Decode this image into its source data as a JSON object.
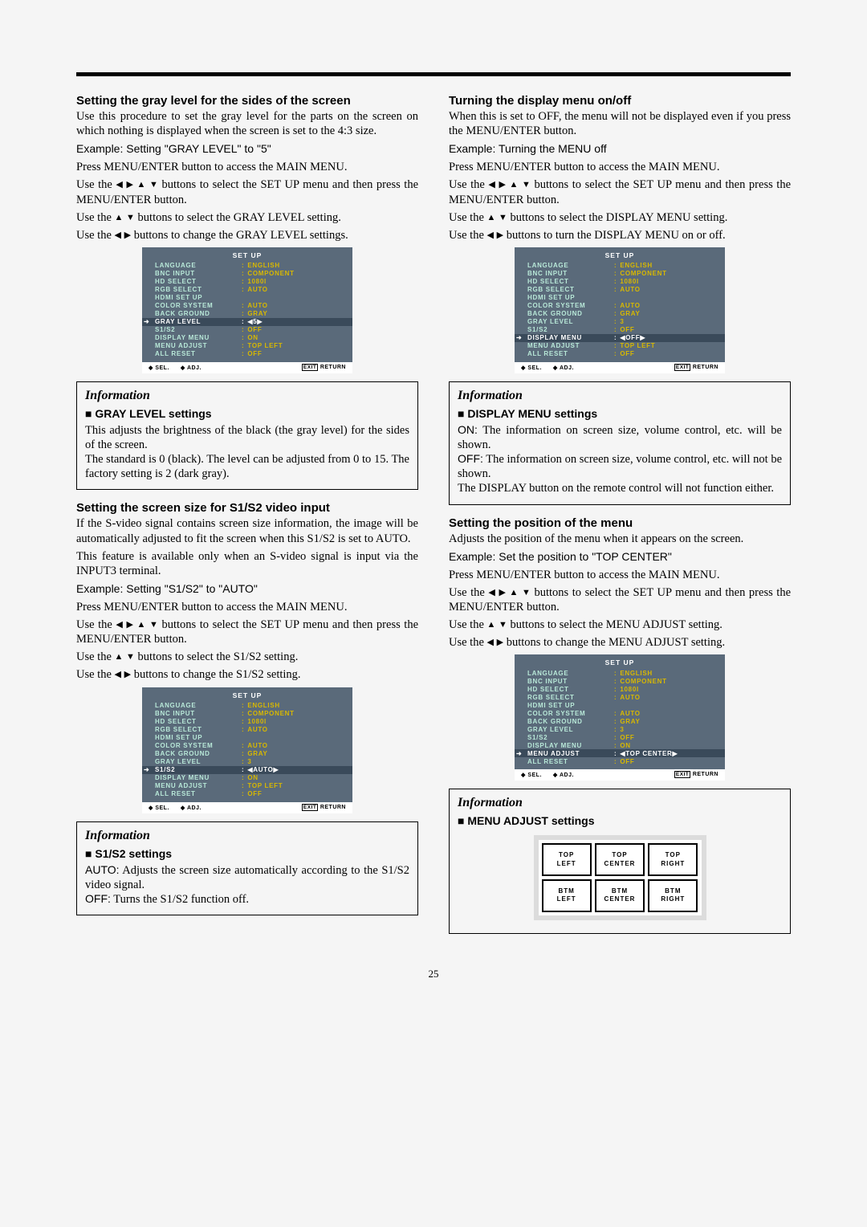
{
  "page_number": "25",
  "arrows": {
    "l": "◀",
    "r": "▶",
    "u": "▲",
    "d": "▼"
  },
  "menu_common": {
    "title": "SET UP",
    "ft_sel": "SEL.",
    "ft_adj": "ADJ.",
    "ft_exit": "EXIT",
    " ft 2": "RETURN",
    "ft_return": "RETURN"
  },
  "menu_colors": {
    "bg": "#5a6a7a",
    "sel_bg": "#3a4a5a",
    "label_color": "#b8e8d8",
    "value_color": "#d8b800",
    "sel_color": "#ffffff"
  },
  "left": {
    "sec1": {
      "h": "Setting the gray level for the sides of the screen",
      "p1": "Use this procedure to set the gray level for the parts on the screen on which nothing is displayed when the screen is set to the 4:3 size.",
      "ex": "Example: Setting \"GRAY LEVEL\" to \"5\"",
      "s1": "Press MENU/ENTER button to access the MAIN MENU.",
      "s2a": "Use the ",
      "s2b": " buttons to select the SET UP menu and then press the MENU/ENTER button.",
      "s3a": "Use the ",
      "s3b": " buttons to select the GRAY LEVEL setting.",
      "s4a": "Use the ",
      "s4b": " buttons to change the GRAY LEVEL settings."
    },
    "menu1": [
      {
        "l": "LANGUAGE",
        "v": "ENGLISH"
      },
      {
        "l": "BNC INPUT",
        "v": "COMPONENT"
      },
      {
        "l": "HD SELECT",
        "v": "1080I"
      },
      {
        "l": "RGB SELECT",
        "v": "AUTO"
      },
      {
        "l": "HDMI SET UP",
        "v": ""
      },
      {
        "l": "COLOR SYSTEM",
        "v": "AUTO"
      },
      {
        "l": "BACK GROUND",
        "v": "GRAY"
      },
      {
        "l": "GRAY LEVEL",
        "v": "◀5▶",
        "sel": true,
        "raw": true
      },
      {
        "l": "S1/S2",
        "v": "OFF"
      },
      {
        "l": "DISPLAY MENU",
        "v": "ON"
      },
      {
        "l": "MENU ADJUST",
        "v": "TOP LEFT"
      },
      {
        "l": "ALL RESET",
        "v": "OFF"
      }
    ],
    "info1": {
      "title": "Information",
      "sub": "GRAY LEVEL settings",
      "p1": "This adjusts the brightness of the black (the gray level) for the sides of the screen.",
      "p2": "The standard is 0 (black). The level can be adjusted from 0 to 15. The factory setting is 2 (dark gray)."
    },
    "sec2": {
      "h": "Setting the screen size for S1/S2 video input",
      "p1": "If the S-video signal contains screen size information, the image will be automatically adjusted to fit the screen when this S1/S2 is set to AUTO.",
      "p2": "This feature is available only when an S-video signal is input via the INPUT3 terminal.",
      "ex": "Example: Setting \"S1/S2\" to \"AUTO\"",
      "s1": "Press MENU/ENTER button to access the MAIN MENU.",
      "s2a": "Use the ",
      "s2b": " buttons to select the SET UP menu and then press the MENU/ENTER button.",
      "s3a": "Use the ",
      "s3b": " buttons to select the S1/S2 setting.",
      "s4a": "Use the ",
      "s4b": " buttons to change the S1/S2 setting."
    },
    "menu2": [
      {
        "l": "LANGUAGE",
        "v": "ENGLISH"
      },
      {
        "l": "BNC INPUT",
        "v": "COMPONENT"
      },
      {
        "l": "HD SELECT",
        "v": "1080I"
      },
      {
        "l": "RGB SELECT",
        "v": "AUTO"
      },
      {
        "l": "HDMI SET UP",
        "v": ""
      },
      {
        "l": "COLOR SYSTEM",
        "v": "AUTO"
      },
      {
        "l": "BACK GROUND",
        "v": "GRAY"
      },
      {
        "l": "GRAY LEVEL",
        "v": "3"
      },
      {
        "l": "S1/S2",
        "v": "◀AUTO▶",
        "sel": true,
        "raw": true
      },
      {
        "l": "DISPLAY MENU",
        "v": "ON"
      },
      {
        "l": "MENU ADJUST",
        "v": "TOP LEFT"
      },
      {
        "l": "ALL RESET",
        "v": "OFF"
      }
    ],
    "info2": {
      "title": "Information",
      "sub": "S1/S2 settings",
      "l1a": "AUTO:",
      "l1b": " Adjusts the screen size automatically according to the S1/S2 video signal.",
      "l2a": "OFF:",
      "l2b": " Turns the S1/S2 function off."
    }
  },
  "right": {
    "sec1": {
      "h": "Turning the display menu on/off",
      "p1": "When this is set to OFF, the menu will not be displayed even if you press the MENU/ENTER button.",
      "ex": "Example: Turning the MENU off",
      "s1": "Press MENU/ENTER button to access the MAIN MENU.",
      "s2a": "Use the ",
      "s2b": " buttons to select the SET UP menu and then press the MENU/ENTER button.",
      "s3a": "Use the ",
      "s3b": " buttons to select the DISPLAY MENU setting.",
      "s4a": "Use the ",
      "s4b": " buttons to turn the DISPLAY MENU on or off."
    },
    "menu1": [
      {
        "l": "LANGUAGE",
        "v": "ENGLISH"
      },
      {
        "l": "BNC INPUT",
        "v": "COMPONENT"
      },
      {
        "l": "HD SELECT",
        "v": "1080I"
      },
      {
        "l": "RGB SELECT",
        "v": "AUTO"
      },
      {
        "l": "HDMI SET UP",
        "v": ""
      },
      {
        "l": "COLOR SYSTEM",
        "v": "AUTO"
      },
      {
        "l": "BACK GROUND",
        "v": "GRAY"
      },
      {
        "l": "GRAY LEVEL",
        "v": "3"
      },
      {
        "l": "S1/S2",
        "v": "OFF"
      },
      {
        "l": "DISPLAY MENU",
        "v": "◀OFF▶",
        "sel": true,
        "raw": true
      },
      {
        "l": "MENU ADJUST",
        "v": "TOP LEFT"
      },
      {
        "l": "ALL RESET",
        "v": "OFF"
      }
    ],
    "info1": {
      "title": "Information",
      "sub": "DISPLAY MENU settings",
      "l1a": "ON:",
      "l1b": " The information on screen size, volume control, etc. will be shown.",
      "l2a": "OFF:",
      "l2b": " The information on screen size, volume control, etc. will not be shown.",
      "p3": "The DISPLAY button on the remote control will not function either."
    },
    "sec2": {
      "h": "Setting the position of the menu",
      "p1": "Adjusts the position of the menu when it appears on the screen.",
      "ex": "Example: Set the position to \"TOP CENTER\"",
      "s1": "Press MENU/ENTER button to access the MAIN MENU.",
      "s2a": "Use the ",
      "s2b": " buttons to select the SET UP menu and then press the MENU/ENTER button.",
      "s3a": "Use the ",
      "s3b": " buttons to select the MENU ADJUST setting.",
      "s4a": "Use the ",
      "s4b": " buttons to change the MENU ADJUST setting."
    },
    "menu2": [
      {
        "l": "LANGUAGE",
        "v": "ENGLISH"
      },
      {
        "l": "BNC INPUT",
        "v": "COMPONENT"
      },
      {
        "l": "HD SELECT",
        "v": "1080I"
      },
      {
        "l": "RGB SELECT",
        "v": "AUTO"
      },
      {
        "l": "HDMI SET UP",
        "v": ""
      },
      {
        "l": "COLOR SYSTEM",
        "v": "AUTO"
      },
      {
        "l": "BACK GROUND",
        "v": "GRAY"
      },
      {
        "l": "GRAY LEVEL",
        "v": "3"
      },
      {
        "l": "S1/S2",
        "v": "OFF"
      },
      {
        "l": "DISPLAY MENU",
        "v": "ON"
      },
      {
        "l": "MENU ADJUST",
        "v": "◀TOP CENTER▶",
        "sel": true,
        "raw": true
      },
      {
        "l": "ALL RESET",
        "v": "OFF"
      }
    ],
    "info2": {
      "title": "Information",
      "sub": "MENU ADJUST settings",
      "grid": [
        "TOP\nLEFT",
        "TOP\nCENTER",
        "TOP\nRIGHT",
        "BTM\nLEFT",
        "BTM\nCENTER",
        "BTM\nRIGHT"
      ]
    }
  }
}
